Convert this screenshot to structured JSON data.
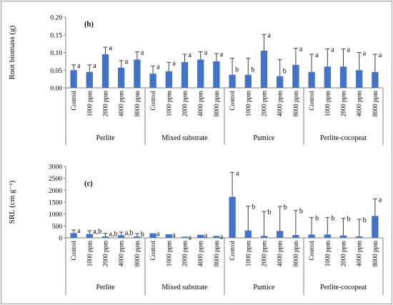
{
  "chart_data": [
    {
      "type": "bar",
      "panel_label": "(b)",
      "ylabel": "Root biomass (g)",
      "ylim": [
        0,
        0.2
      ],
      "yticks": [
        "0.00",
        "0.05",
        "0.10",
        "0.15",
        "0.20"
      ],
      "yticks_values": [
        0,
        0.05,
        0.1,
        0.15,
        0.2
      ],
      "groups": [
        {
          "name": "Perlite",
          "categories": [
            "Control",
            "1000 ppm",
            "2000 ppm",
            "4000 ppm",
            "8000 ppm"
          ],
          "values": [
            0.05,
            0.045,
            0.095,
            0.057,
            0.08
          ],
          "errors": [
            0.015,
            0.02,
            0.02,
            0.02,
            0.022
          ],
          "letters": [
            "a",
            "a",
            "a",
            "a",
            "a"
          ]
        },
        {
          "name": "Mixed substrate",
          "categories": [
            "Control",
            "1000 ppm",
            "2000 ppm",
            "4000 ppm",
            "8000 ppm"
          ],
          "values": [
            0.04,
            0.047,
            0.073,
            0.08,
            0.075
          ],
          "errors": [
            0.022,
            0.025,
            0.022,
            0.022,
            0.022
          ],
          "letters": [
            "a",
            "a",
            "a",
            "a",
            "a"
          ]
        },
        {
          "name": "Pumice",
          "categories": [
            "Control",
            "1000 ppm",
            "2000 ppm",
            "4000 ppm",
            "8000 ppm"
          ],
          "values": [
            0.037,
            0.037,
            0.105,
            0.033,
            0.065
          ],
          "errors": [
            0.047,
            0.047,
            0.046,
            0.047,
            0.047
          ],
          "letters": [
            "b",
            "b",
            "a",
            "b",
            "a"
          ]
        },
        {
          "name": "Perlite-cocopeat",
          "categories": [
            "Control",
            "1000 ppm",
            "2000 ppm",
            "4000 ppm",
            "8000 ppm"
          ],
          "values": [
            0.045,
            0.06,
            0.06,
            0.05,
            0.045
          ],
          "errors": [
            0.05,
            0.05,
            0.05,
            0.05,
            0.05
          ],
          "letters": [
            "a",
            "a",
            "a",
            "a",
            "a"
          ]
        }
      ]
    },
    {
      "type": "bar",
      "panel_label": "(c)",
      "ylabel": "SRL (cm g⁻¹)",
      "ylim": [
        0,
        3000
      ],
      "yticks": [
        "0",
        "500",
        "1000",
        "1500",
        "2000",
        "2500",
        "3000"
      ],
      "yticks_values": [
        0,
        500,
        1000,
        1500,
        2000,
        2500,
        3000
      ],
      "groups": [
        {
          "name": "Perlite",
          "categories": [
            "Control",
            "1000 ppm",
            "2000 ppm",
            "4000 ppm",
            "8000 ppm"
          ],
          "values": [
            200,
            160,
            60,
            110,
            60
          ],
          "errors": [
            130,
            140,
            130,
            130,
            120
          ],
          "letters": [
            "a",
            "a,b",
            "a,b",
            "a,b",
            "b"
          ]
        },
        {
          "name": "Mixed substrate",
          "categories": [
            "Control",
            "1000 ppm",
            "2000 ppm",
            "4000 ppm",
            "8000 ppm"
          ],
          "values": [
            190,
            150,
            50,
            130,
            80
          ],
          "errors": [
            0,
            0,
            0,
            0,
            0
          ],
          "letters": [
            "a",
            "a",
            "a",
            "a",
            "a"
          ]
        },
        {
          "name": "Pumice",
          "categories": [
            "Control",
            "1000 ppm",
            "2000 ppm",
            "4000 ppm",
            "8000 ppm"
          ],
          "values": [
            1720,
            310,
            80,
            290,
            120
          ],
          "errors": [
            1030,
            1020,
            1030,
            1030,
            1030
          ],
          "letters": [
            "a",
            "b",
            "b",
            "b",
            "b"
          ]
        },
        {
          "name": "Perlite-cocopeat",
          "categories": [
            "Control",
            "1000 ppm",
            "2000 ppm",
            "4000 ppm",
            "8000 ppm"
          ],
          "values": [
            140,
            140,
            100,
            60,
            920
          ],
          "errors": [
            720,
            720,
            720,
            720,
            720
          ],
          "letters": [
            "b",
            "b",
            "b",
            "b",
            "a"
          ]
        }
      ]
    }
  ]
}
